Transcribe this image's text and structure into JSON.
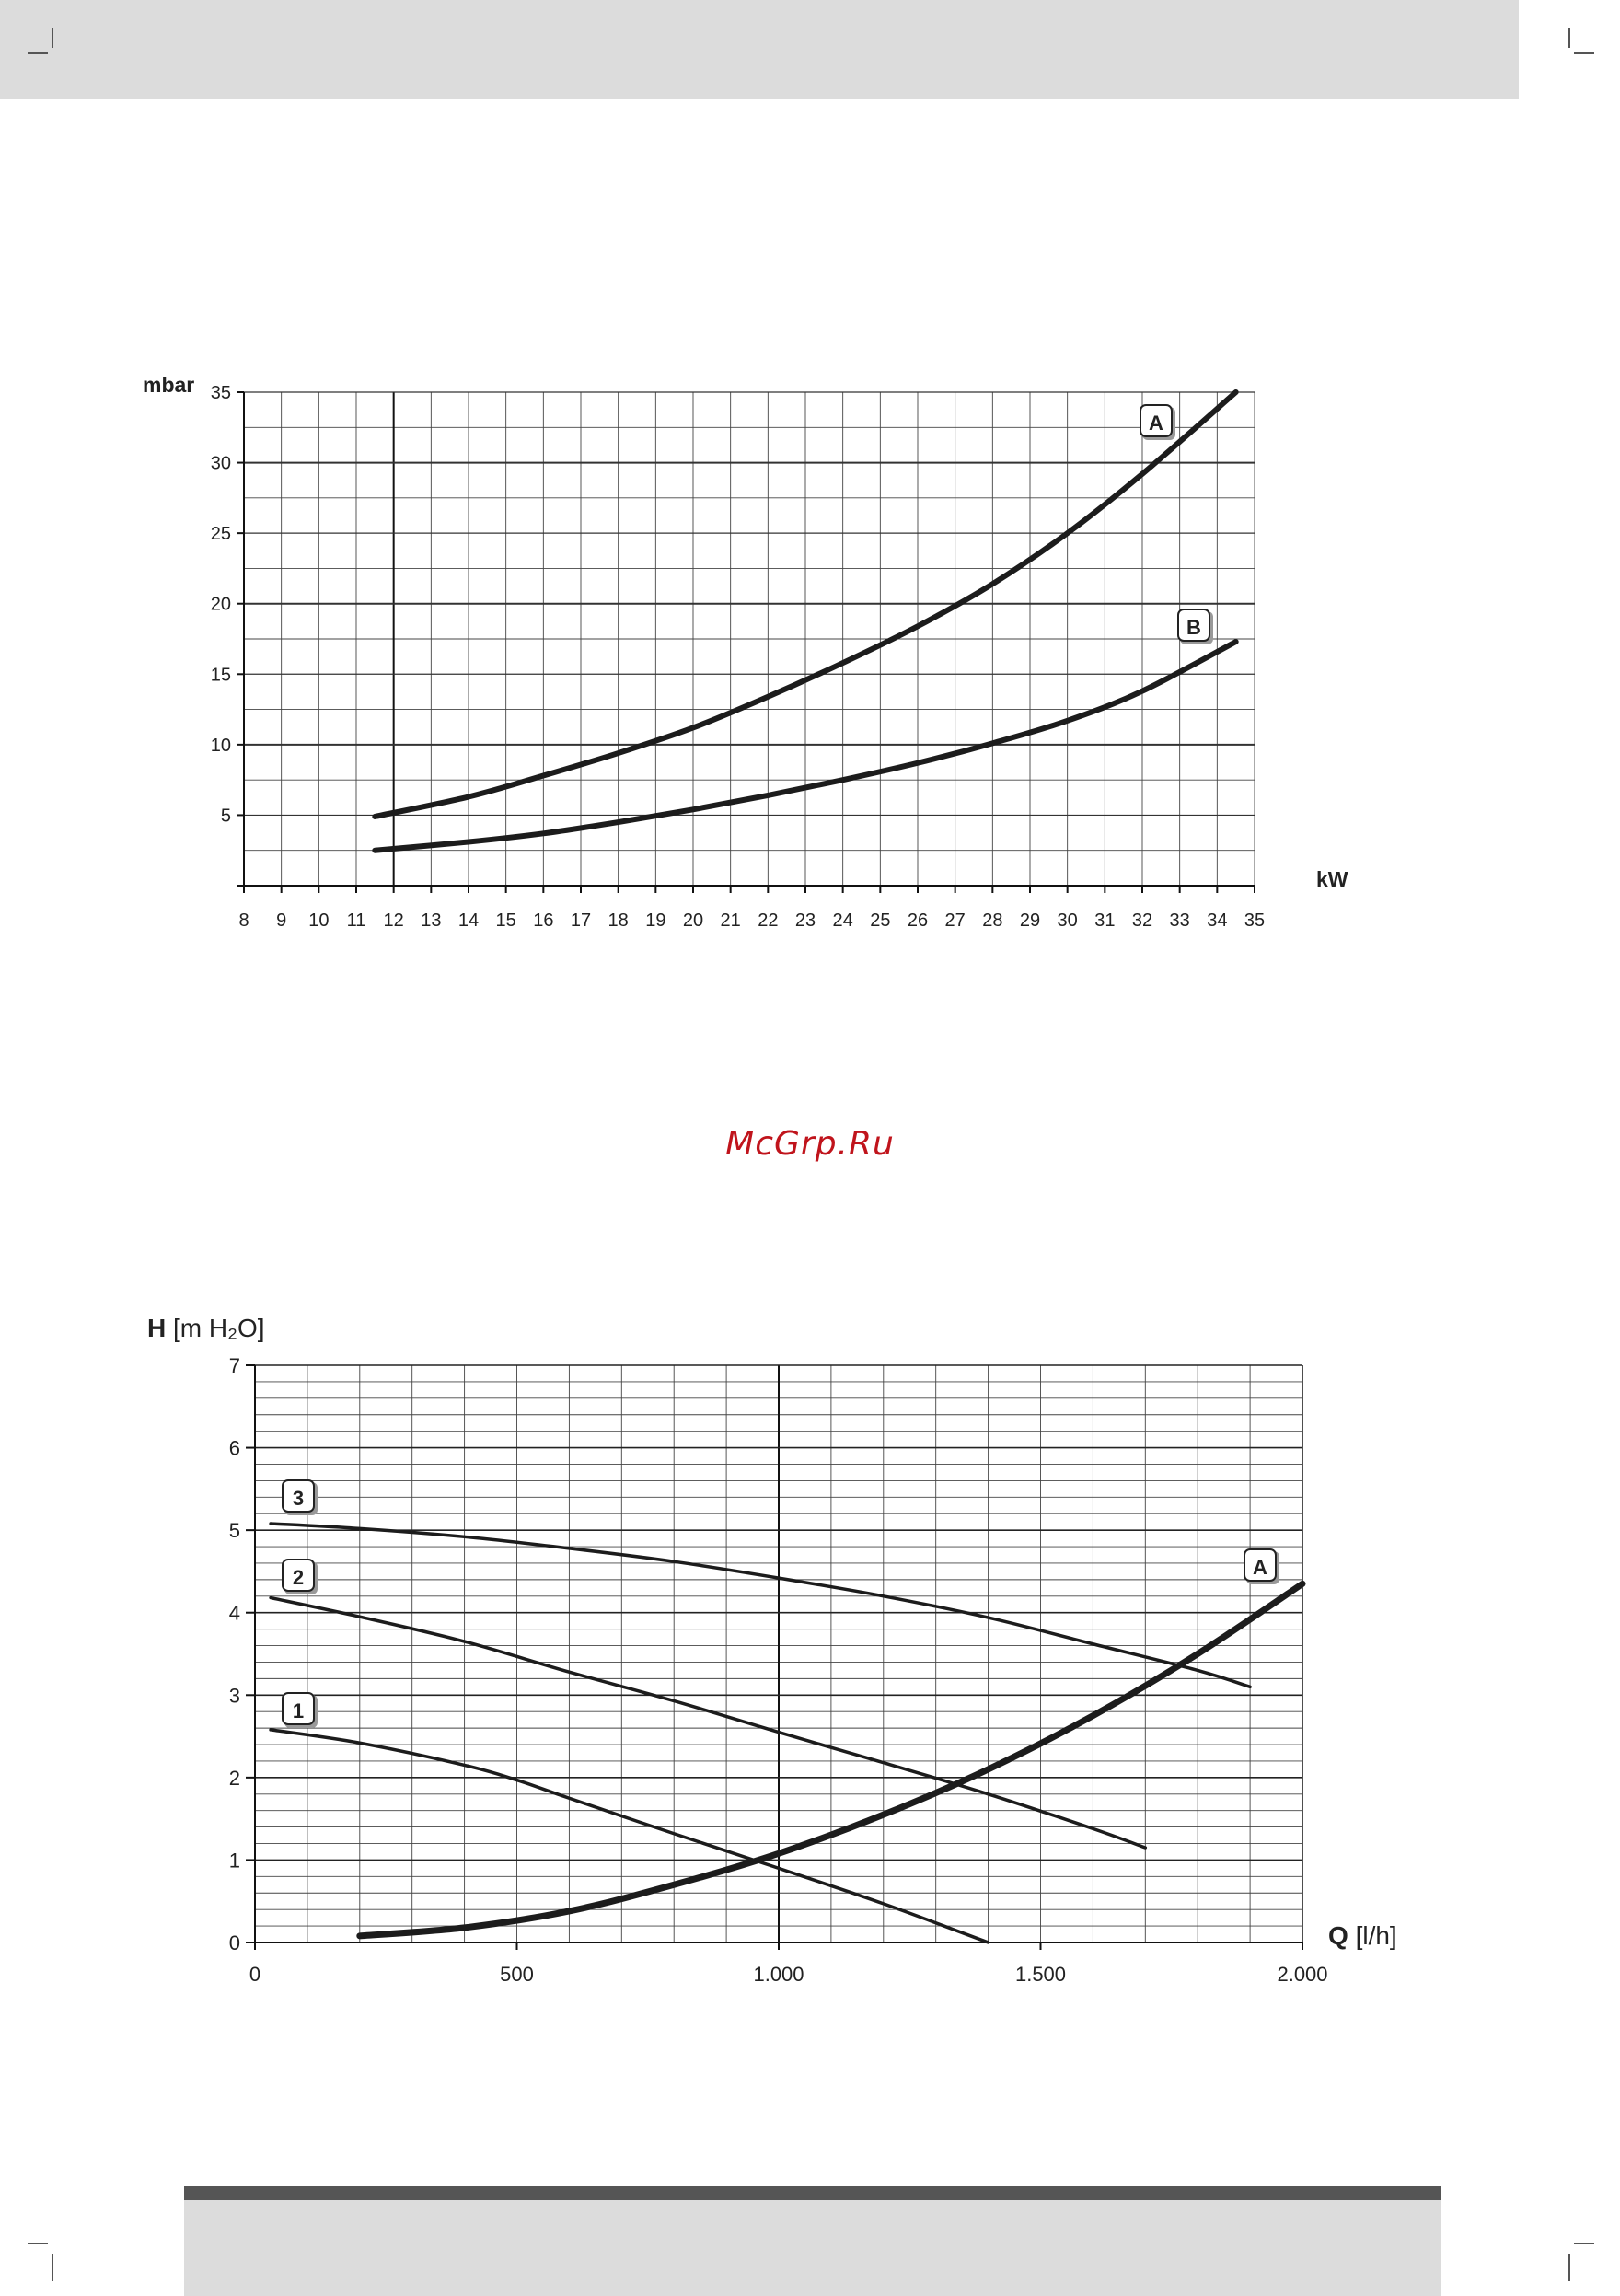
{
  "page": {
    "watermark": "McGrp.Ru",
    "colors": {
      "band": "#dcdcdc",
      "bar": "#555555",
      "watermark": "#c0141c",
      "ink": "#222222"
    }
  },
  "chart_data": [
    {
      "type": "line",
      "title": "",
      "ylabel": "mbar",
      "xlabel": "kW",
      "xlim": [
        8,
        35
      ],
      "ylim": [
        0,
        35
      ],
      "xticks": [
        8,
        9,
        10,
        11,
        12,
        13,
        14,
        15,
        16,
        17,
        18,
        19,
        20,
        21,
        22,
        23,
        24,
        25,
        26,
        27,
        28,
        29,
        30,
        31,
        32,
        33,
        34,
        35
      ],
      "yticks": [
        5,
        10,
        15,
        20,
        25,
        30,
        35
      ],
      "grid": true,
      "series": [
        {
          "name": "A",
          "x": [
            11.5,
            14,
            16,
            18,
            20,
            22,
            24,
            26,
            28,
            30,
            32,
            34.5
          ],
          "y": [
            4.9,
            6.3,
            7.8,
            9.4,
            11.2,
            13.4,
            15.8,
            18.4,
            21.4,
            25.0,
            29.2,
            35.0
          ]
        },
        {
          "name": "B",
          "x": [
            11.5,
            14,
            16,
            18,
            20,
            22,
            24,
            26,
            28,
            30,
            32,
            34.5
          ],
          "y": [
            2.5,
            3.1,
            3.7,
            4.5,
            5.4,
            6.4,
            7.5,
            8.7,
            10.1,
            11.7,
            13.8,
            17.3
          ]
        }
      ]
    },
    {
      "type": "line",
      "title": "",
      "ylabel_bold": "H",
      "ylabel": "[m H₂O]",
      "xlabel_bold": "Q",
      "xlabel": "[l/h]",
      "xlim": [
        0,
        2000
      ],
      "ylim": [
        0,
        7
      ],
      "xticks": [
        0,
        500,
        1000,
        1500,
        2000
      ],
      "xtick_labels": [
        "0",
        "500",
        "1.000",
        "1.500",
        "2.000"
      ],
      "yticks": [
        0,
        1,
        2,
        3,
        4,
        5,
        6,
        7
      ],
      "grid": true,
      "series": [
        {
          "name": "3",
          "x": [
            30,
            200,
            400,
            600,
            800,
            1000,
            1200,
            1400,
            1600,
            1800,
            1900
          ],
          "y": [
            5.08,
            5.02,
            4.92,
            4.78,
            4.62,
            4.42,
            4.2,
            3.94,
            3.62,
            3.3,
            3.1
          ]
        },
        {
          "name": "2",
          "x": [
            30,
            200,
            400,
            600,
            800,
            1000,
            1200,
            1400,
            1600,
            1700
          ],
          "y": [
            4.18,
            3.95,
            3.65,
            3.28,
            2.93,
            2.55,
            2.18,
            1.8,
            1.38,
            1.15
          ]
        },
        {
          "name": "1",
          "x": [
            30,
            200,
            400,
            500,
            600,
            800,
            1000,
            1200,
            1400
          ],
          "y": [
            2.58,
            2.42,
            2.15,
            1.97,
            1.75,
            1.32,
            0.9,
            0.47,
            0.0
          ]
        },
        {
          "name": "A",
          "x": [
            200,
            400,
            600,
            800,
            1000,
            1200,
            1400,
            1600,
            1800,
            2000
          ],
          "y": [
            0.08,
            0.18,
            0.38,
            0.7,
            1.08,
            1.55,
            2.1,
            2.75,
            3.5,
            4.35
          ]
        }
      ]
    }
  ]
}
